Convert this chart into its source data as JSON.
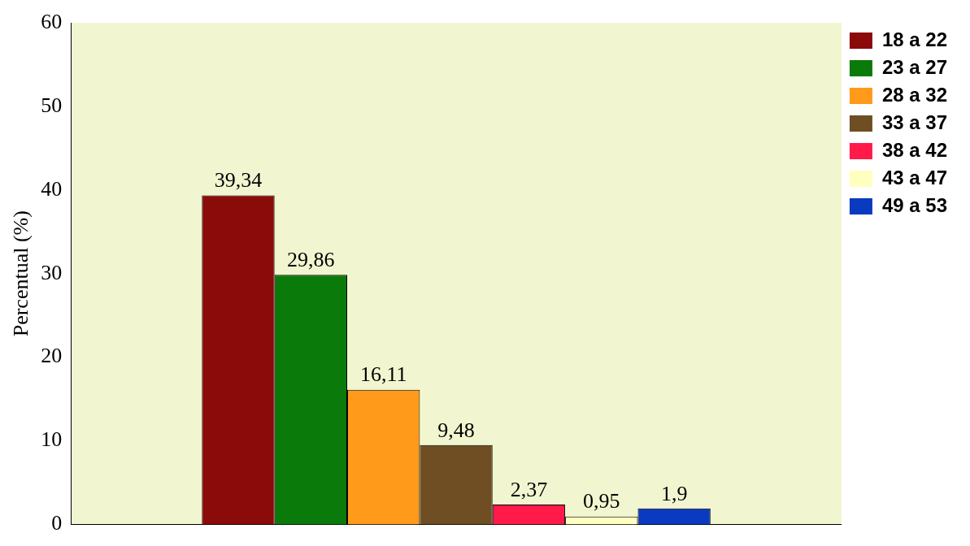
{
  "chart_data": {
    "type": "bar",
    "ylabel": "Percentual (%)",
    "categories": [
      null
    ],
    "series": [
      {
        "name": "18 a 22",
        "color": "#8b0a0a",
        "values": [
          39.34
        ],
        "value_labels": [
          "39,34"
        ]
      },
      {
        "name": "23 a 27",
        "color": "#0a7a0a",
        "values": [
          29.86
        ],
        "value_labels": [
          "29,86"
        ]
      },
      {
        "name": "28 a 32",
        "color": "#ff9a1a",
        "values": [
          16.11
        ],
        "value_labels": [
          "16,11"
        ]
      },
      {
        "name": "33 a 37",
        "color": "#6e4e22",
        "values": [
          9.48
        ],
        "value_labels": [
          "9,48"
        ]
      },
      {
        "name": "38 a 42",
        "color": "#ff1a4a",
        "values": [
          2.37
        ],
        "value_labels": [
          "2,37"
        ]
      },
      {
        "name": "43 a 47",
        "color": "#ffffc0",
        "values": [
          0.95
        ],
        "value_labels": [
          "0,95"
        ]
      },
      {
        "name": "49 a 53",
        "color": "#0a3ac0",
        "values": [
          1.9
        ],
        "value_labels": [
          "1,9"
        ]
      }
    ],
    "ylim": [
      0,
      60
    ],
    "yticks": [
      0,
      10,
      20,
      30,
      40,
      50,
      60
    ],
    "grid": false,
    "legend": "top right"
  }
}
